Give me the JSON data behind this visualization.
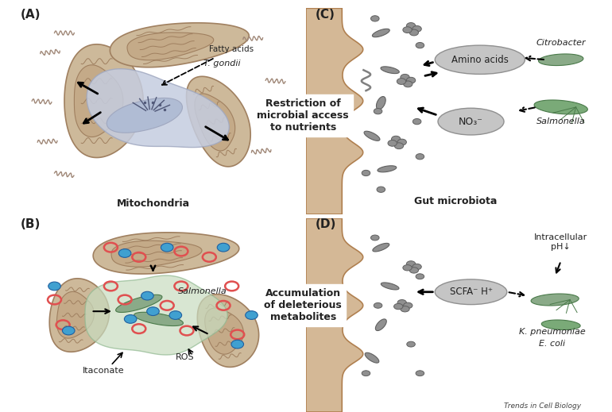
{
  "bg_left": "#f2e8df",
  "bg_right": "#dce8f0",
  "mito_outer": "#cdb99a",
  "mito_inner": "#c4aa88",
  "mito_edge": "#a08060",
  "vacuole_A_color": "#c5cde0",
  "vacuole_A_edge": "#a0a8c0",
  "parasite_color": "#b0bcd4",
  "vacuole_B_color": "#c8dcc0",
  "vacuole_B_edge": "#90b890",
  "salm_color": "#8aaa88",
  "salm_edge": "#4a7a4a",
  "gray_bact": "#909090",
  "gray_bact_edge": "#606060",
  "cocci_color": "#909090",
  "amino_fill": "#c8c8c8",
  "no3_fill": "#c8c8c8",
  "gut_wall": "#d4b896",
  "gut_edge": "#b08050",
  "text_dark": "#222222",
  "ros_color": "#e05050",
  "itac_color": "#40a0d0",
  "panel_A": "(A)",
  "panel_B": "(B)",
  "panel_C": "(C)",
  "panel_D": "(D)",
  "title_A": "Mitochondria",
  "label_fatty": "Fatty acids",
  "label_tgondii": "T. gondii",
  "label_salm_B": "Salmonella",
  "label_ROS": "ROS",
  "label_Itaconate": "Itaconate",
  "label_amino": "Amino acids",
  "label_no3": "NO₃⁻",
  "label_citro": "Citrobacter",
  "label_salmo_C": "Salmonella",
  "label_gut": "Gut microbiota",
  "label_scfa": "SCFA⁻ H⁺",
  "label_ph": "Intracellular\npH↓",
  "label_kpneu": "K. pneumoniae",
  "label_ecoli": "E. coli",
  "label_restrict": "Restriction of\nmicrobial access\nto nutrients",
  "label_accum": "Accumulation\nof deleterious\nmetabolites",
  "footer": "Trends in Cell Biology"
}
